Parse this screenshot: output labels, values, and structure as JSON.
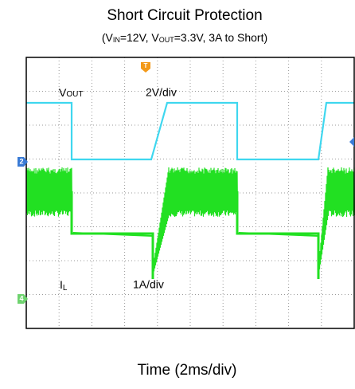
{
  "title": "Short Circuit Protection",
  "subtitle": [
    "(V",
    "IN",
    "=12V, V",
    "OUT",
    "=3.3V, 3A to Short)"
  ],
  "trace_labels": {
    "vout": [
      "V",
      "OUT"
    ],
    "vout_scale": "2V/div",
    "il": [
      "I",
      "L"
    ],
    "il_scale": "1A/div"
  },
  "markers": {
    "trigger": "T",
    "channel2": "2",
    "channel4": "4"
  },
  "x_label": "Time (2ms/div)"
}
